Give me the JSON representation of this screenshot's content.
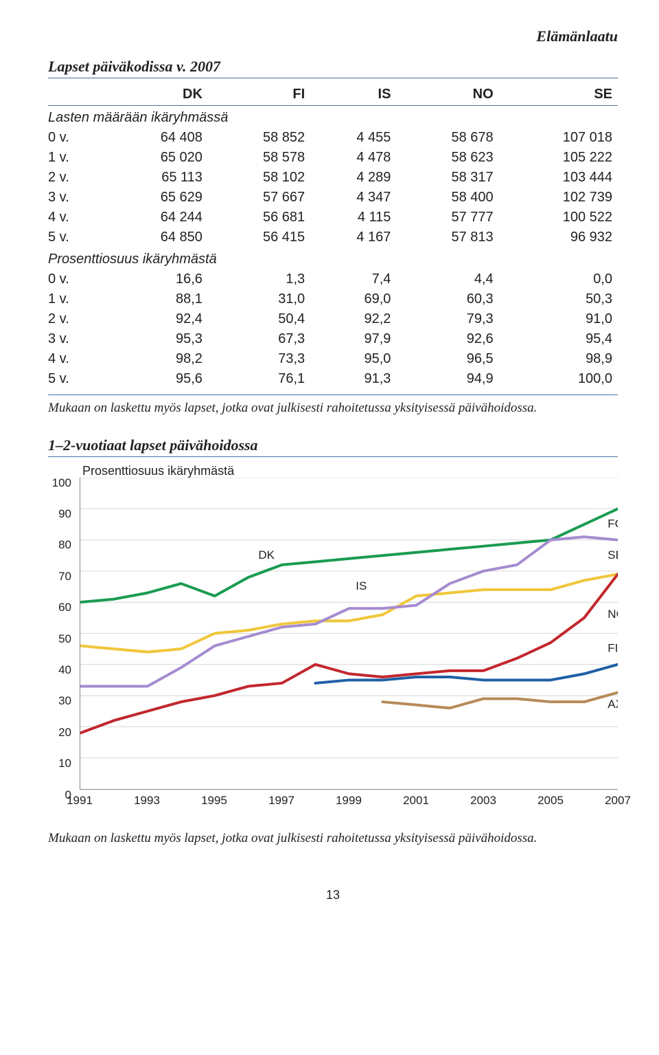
{
  "header": {
    "section_label": "Elämänlaatu"
  },
  "table": {
    "title": "Lapset päiväkodissa v. 2007",
    "columns": [
      "",
      "DK",
      "FI",
      "IS",
      "NO",
      "SE"
    ],
    "group1_label": "Lasten määrään ikäryhmässä",
    "group1_rows": [
      [
        "0 v.",
        "64 408",
        "58 852",
        "4 455",
        "58 678",
        "107 018"
      ],
      [
        "1 v.",
        "65 020",
        "58 578",
        "4 478",
        "58 623",
        "105 222"
      ],
      [
        "2 v.",
        "65 113",
        "58 102",
        "4 289",
        "58 317",
        "103 444"
      ],
      [
        "3 v.",
        "65 629",
        "57 667",
        "4 347",
        "58 400",
        "102 739"
      ],
      [
        "4 v.",
        "64 244",
        "56 681",
        "4 115",
        "57 777",
        "100 522"
      ],
      [
        "5 v.",
        "64 850",
        "56 415",
        "4 167",
        "57 813",
        "96 932"
      ]
    ],
    "group2_label": "Prosenttiosuus ikäryhmästä",
    "group2_rows": [
      [
        "0 v.",
        "16,6",
        "1,3",
        "7,4",
        "4,4",
        "0,0"
      ],
      [
        "1 v.",
        "88,1",
        "31,0",
        "69,0",
        "60,3",
        "50,3"
      ],
      [
        "2 v.",
        "92,4",
        "50,4",
        "92,2",
        "79,3",
        "91,0"
      ],
      [
        "3 v.",
        "95,3",
        "67,3",
        "97,9",
        "92,6",
        "95,4"
      ],
      [
        "4 v.",
        "98,2",
        "73,3",
        "95,0",
        "96,5",
        "98,9"
      ],
      [
        "5 v.",
        "95,6",
        "76,1",
        "91,3",
        "94,9",
        "100,0"
      ]
    ],
    "note": "Mukaan on laskettu myös lapset, jotka ovat julkisesti rahoitetussa yksityisessä päivähoidossa."
  },
  "chart": {
    "title": "1–2-vuotiaat lapset päivähoidossa",
    "subtitle": "Prosenttiosuus ikäryhmästä",
    "type": "line",
    "xlim": [
      1991,
      2007
    ],
    "ylim": [
      0,
      100
    ],
    "ytick_step": 10,
    "xticks": [
      1991,
      1993,
      1995,
      1997,
      1999,
      2001,
      2003,
      2005,
      2007
    ],
    "background_color": "#ffffff",
    "grid_color": "#d6d6d6",
    "axis_color": "#888888",
    "line_width": 4,
    "series": [
      {
        "name": "DK",
        "color": "#1a9b52",
        "label_pos": [
          1996.3,
          74
        ],
        "x": [
          1991,
          1992,
          1993,
          1994,
          1995,
          1996,
          1997,
          1998,
          1999,
          2000,
          2001,
          2002,
          2003,
          2004,
          2005,
          2006,
          2007
        ],
        "y": [
          60,
          61,
          63,
          66,
          62,
          68,
          72,
          73,
          74,
          75,
          76,
          77,
          78,
          79,
          80,
          85,
          90
        ]
      },
      {
        "name": "IS",
        "color": "#f0c63a",
        "label_pos": [
          1999.2,
          64
        ],
        "x": [
          1991,
          1992,
          1993,
          1994,
          1995,
          1996,
          1997,
          1998,
          1999,
          2000,
          2001,
          2002,
          2003,
          2004,
          2005,
          2006,
          2007
        ],
        "y": [
          46,
          45,
          44,
          45,
          50,
          51,
          53,
          54,
          54,
          56,
          62,
          63,
          64,
          64,
          64,
          67,
          69
        ]
      },
      {
        "name": "SE",
        "color": "#a58bd0",
        "label_pos": [
          2006.7,
          74
        ],
        "x": [
          1991,
          1992,
          1993,
          1994,
          1995,
          1996,
          1997,
          1998,
          1999,
          2000,
          2001,
          2002,
          2003,
          2004,
          2005,
          2006,
          2007
        ],
        "y": [
          33,
          33,
          33,
          39,
          46,
          49,
          52,
          53,
          58,
          58,
          59,
          66,
          70,
          72,
          80,
          81,
          80
        ]
      },
      {
        "name": "NO",
        "color": "#c1272d",
        "label_pos": [
          2006.7,
          55
        ],
        "x": [
          1991,
          1992,
          1993,
          1994,
          1995,
          1996,
          1997,
          1998,
          1999,
          2000,
          2001,
          2002,
          2003,
          2004,
          2005,
          2006,
          2007
        ],
        "y": [
          18,
          22,
          25,
          28,
          30,
          33,
          34,
          40,
          37,
          36,
          37,
          38,
          38,
          42,
          47,
          55,
          69
        ]
      },
      {
        "name": "FI",
        "color": "#1f5fa6",
        "label_pos": [
          2006.7,
          44
        ],
        "x": [
          1998,
          1999,
          2000,
          2001,
          2002,
          2003,
          2004,
          2005,
          2006,
          2007
        ],
        "y": [
          34,
          35,
          35,
          36,
          36,
          35,
          35,
          35,
          37,
          40
        ]
      },
      {
        "name": "FO",
        "color": "#1a9b52",
        "label_pos": [
          2006.7,
          84
        ],
        "x": [],
        "y": []
      },
      {
        "name": "AX",
        "color": "#b78a5a",
        "label_pos": [
          2006.7,
          26
        ],
        "x": [
          2000,
          2001,
          2002,
          2003,
          2004,
          2005,
          2006,
          2007
        ],
        "y": [
          28,
          27,
          26,
          29,
          29,
          28,
          28,
          31
        ]
      }
    ],
    "note": "Mukaan on laskettu myös lapset, jotka ovat julkisesti rahoitetussa yksityisessä päivähoidossa."
  },
  "page_number": "13"
}
